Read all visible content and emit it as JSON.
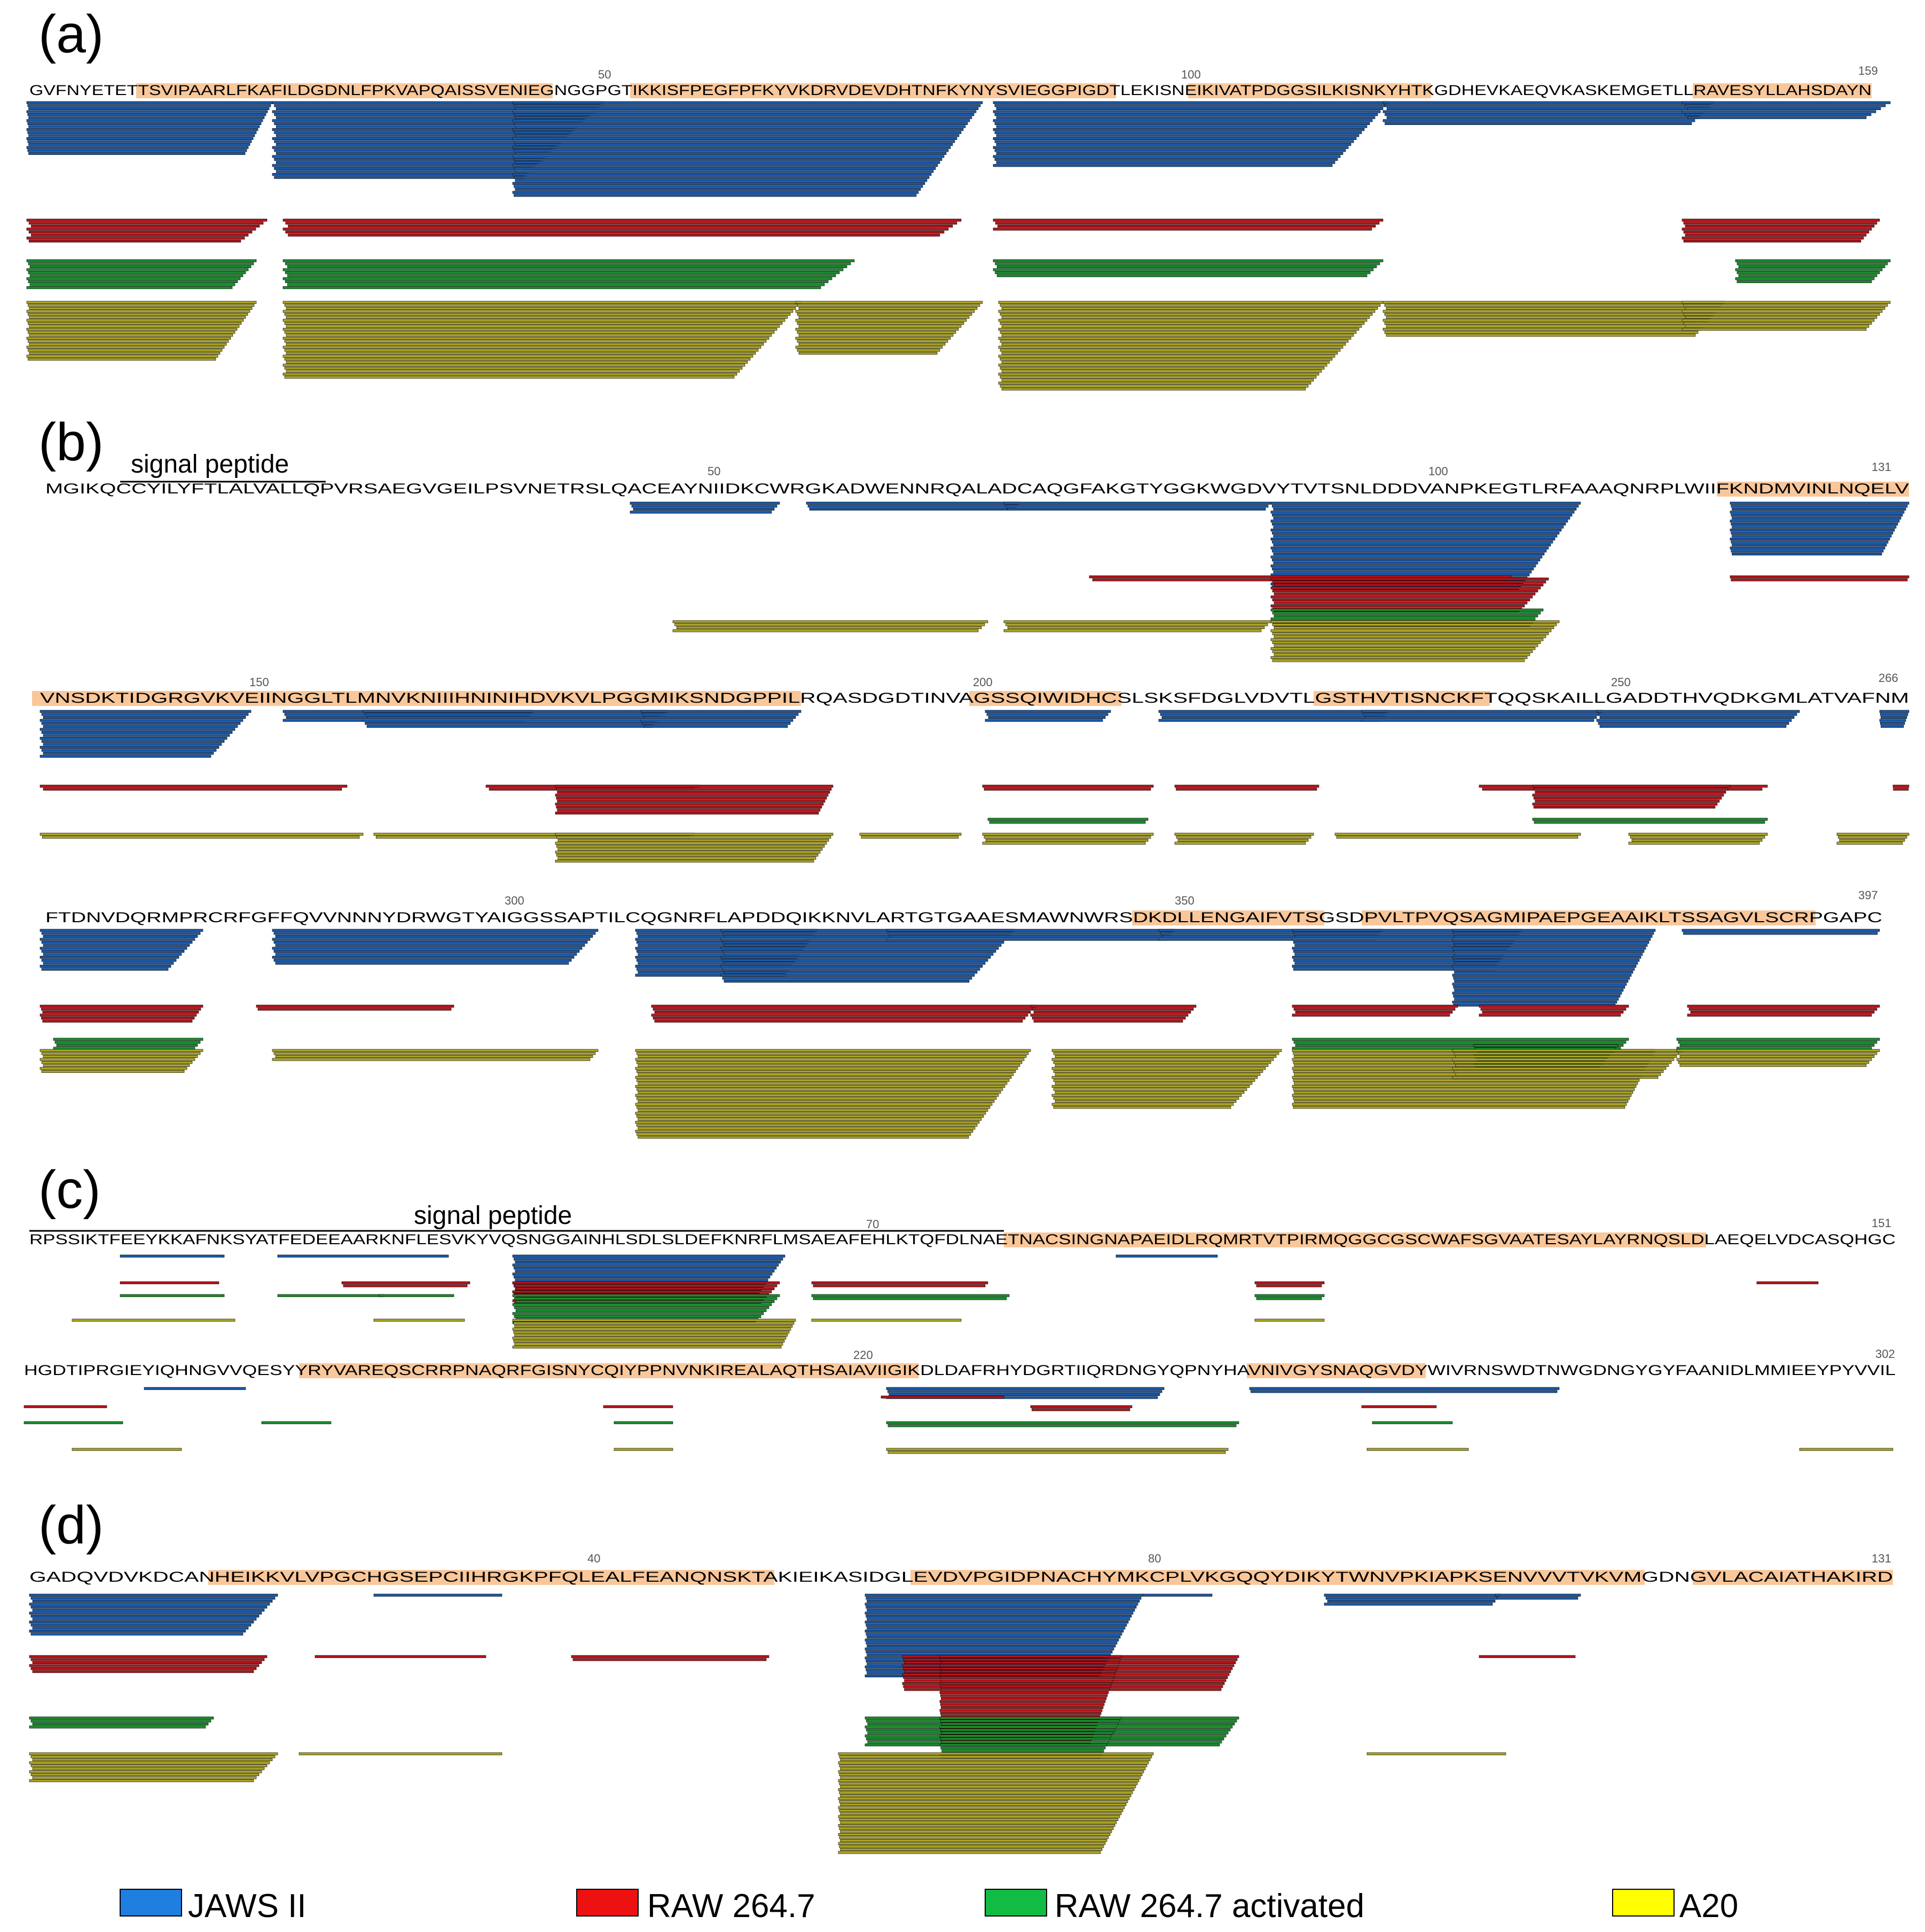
{
  "colors": {
    "JAWS II": "#1a57a6",
    "RAW 264.7": "#b3141a",
    "RAW 264.7 activated": "#1a8c2e",
    "A20": "#a9a226",
    "highlight": "#f9c79a"
  },
  "legend": [
    {
      "label": "JAWS II",
      "swatch": "#1f7fe0"
    },
    {
      "label": "RAW 264.7",
      "swatch": "#ee1111"
    },
    {
      "label": "RAW 264.7 activated",
      "swatch": "#11bb44"
    },
    {
      "label": "A20",
      "swatch": "#ffff00"
    }
  ],
  "panels": [
    {
      "label": "(a)",
      "signal_peptide": null,
      "rows": [
        {
          "sequence": "GVFNYETETTSVIPAARLFKAFILDGDNLFPKVAPQAISSVENIEGNGGPGTIKKISFPEGFPFKYVKDRVDEVDHTNFKYNYSVIEGGPIGDTLEKISNEIKIVATPDGGSILKISNKYHTKGDHEVKAEQVKASKEMGETLLRAVESYLLAHSDAYN",
          "numbers": [
            "50",
            "100",
            "159"
          ]
        }
      ]
    },
    {
      "label": "(b)",
      "signal_peptide": "signal peptide",
      "rows": [
        {
          "sequence": "MGIKQCCYILYFTLALVALLQPVRSAEGVGEILPSVNETRSLQACEAYNIIDKCWRGKADWENNRQALADCAQGFAKGTYGGKWGDVYTVTSNLDDDVANPKEGTLRFAAAQNRPLWIIFKNDMVINLNQELV",
          "numbers": [
            "50",
            "100",
            "131"
          ]
        },
        {
          "sequence": "VNSDKTIDGRGVKVEIINGGLTLMNVKNIIIHNINIHDVKVLPGGMIKSNDGPPILRQASDGDTINVAGSSQIWIDHCSLSKSFDGLVDVTLGSTHVTISNCKFTQQSKAILLGADDTHVQDKGMLATVAFNM",
          "numbers": [
            "150",
            "200",
            "250",
            "266"
          ]
        },
        {
          "sequence": "FTDNVDQRMPRCRFGFFQVVNNNYDRWGTYAIGGSSAPTILCQGNRFLAPDDQIKKNVLARTGTGAAESMAWNWRSDKDLLENGAIFVTSGSDPVLTPVQSAGMIPAEPGEAAIKLTSSAGVLSCRPGAPC",
          "numbers": [
            "300",
            "350",
            "397"
          ]
        }
      ]
    },
    {
      "label": "(c)",
      "signal_peptide": "signal peptide",
      "rows": [
        {
          "sequence": "RPSSIKTFEEYKKAFNKSYATFEDEEAARKNFLESVKYVQSNGGAINHLSDLSLDEFKNRFLMSAEAFEHLKTQFDLNAETNACSINGNAPAEIDLRQMRTVTPIRMQGGCGSCWAFSGVAATESAYLAYRNQSLDLAEQELVDCASQHGC",
          "numbers": [
            "70",
            "151"
          ]
        },
        {
          "sequence": "HGDTIPRGIEYIQHNGVVQESYYRYVAREQSCRRPNAQRFGISNYCQIYPPNVNKIREALAQTHSAIAVIIGIKDLDAFRHYDGRTIIQRDNGYQPNYHAVNIVGYSNAQGVDYWIVRNSWDTNWGDNGYGYFAANIDLMMIEEYPYVVIL",
          "numbers": [
            "220",
            "302"
          ]
        }
      ]
    },
    {
      "label": "(d)",
      "signal_peptide": null,
      "rows": [
        {
          "sequence": "GADQVDVKDCANHEIKKVLVPGCHGSEPCIIHRGKPFQLEALFEANQNSKTAKIEIKASIDGLEVDVPGIDPNACHYMKCPLVKGQQYDIKYTWNVPKIAPKSENVVVTVKVMGDNGVLACAIATHAKIRD",
          "numbers": [
            "40",
            "80",
            "131"
          ]
        }
      ]
    }
  ]
}
